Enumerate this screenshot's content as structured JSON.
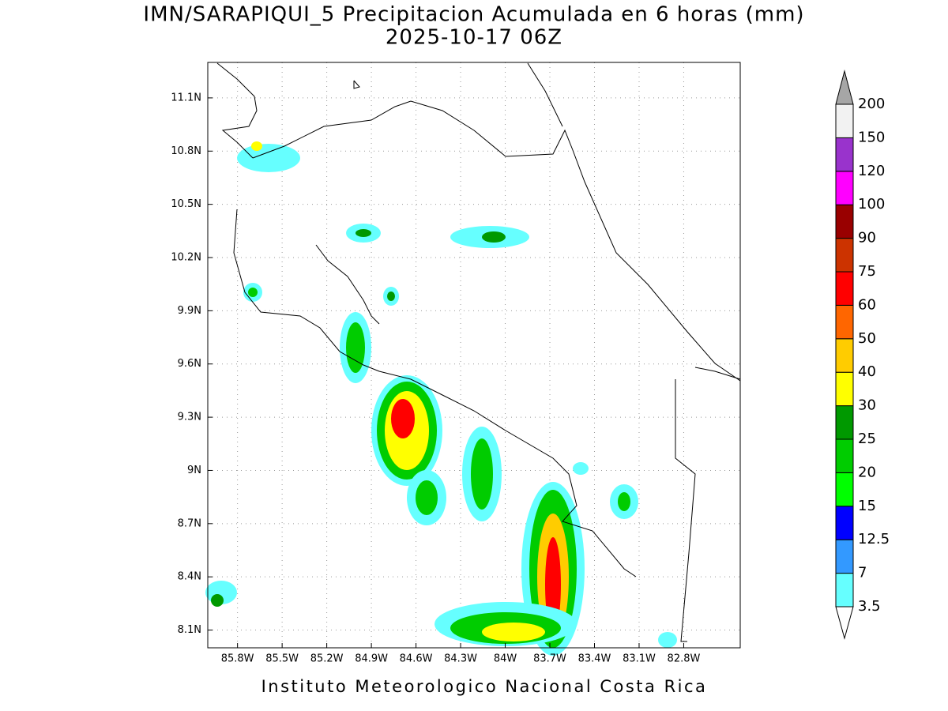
{
  "header": {
    "title": "IMN/SARAPIQUI_5 Precipitacion Acumulada en 6 horas (mm)",
    "subtitle": "2025-10-17 06Z"
  },
  "map": {
    "lon_range": [
      -86.0,
      -82.42
    ],
    "lat_range": [
      8.0,
      11.3
    ],
    "grid": true,
    "lon_ticks": [
      {
        "value": -85.8,
        "label": "85.8W"
      },
      {
        "value": -85.5,
        "label": "85.5W"
      },
      {
        "value": -85.2,
        "label": "85.2W"
      },
      {
        "value": -84.9,
        "label": "84.9W"
      },
      {
        "value": -84.6,
        "label": "84.6W"
      },
      {
        "value": -84.3,
        "label": "84.3W"
      },
      {
        "value": -84.0,
        "label": "84W"
      },
      {
        "value": -83.7,
        "label": "83.7W"
      },
      {
        "value": -83.4,
        "label": "83.4W"
      },
      {
        "value": -83.1,
        "label": "83.1W"
      },
      {
        "value": -82.8,
        "label": "82.8W"
      }
    ],
    "lat_ticks": [
      {
        "value": 8.1,
        "label": "8.1N"
      },
      {
        "value": 8.4,
        "label": "8.4N"
      },
      {
        "value": 8.7,
        "label": "8.7N"
      },
      {
        "value": 9.0,
        "label": "9N"
      },
      {
        "value": 9.3,
        "label": "9.3N"
      },
      {
        "value": 9.6,
        "label": "9.6N"
      },
      {
        "value": 9.9,
        "label": "9.9N"
      },
      {
        "value": 10.2,
        "label": "10.2N"
      },
      {
        "value": 10.5,
        "label": "10.5N"
      },
      {
        "value": 10.8,
        "label": "10.8N"
      },
      {
        "value": 11.1,
        "label": "11.1N"
      }
    ]
  },
  "colorbar": {
    "levels": [
      3.5,
      7,
      12.5,
      15,
      20,
      25,
      30,
      40,
      50,
      60,
      75,
      90,
      100,
      120,
      150,
      200
    ],
    "colors": [
      "#66ffff",
      "#3399ff",
      "#0000ff",
      "#00ff00",
      "#00cc00",
      "#009900",
      "#ffff00",
      "#ffcc00",
      "#ff6600",
      "#ff0000",
      "#cc3300",
      "#990000",
      "#ff00ff",
      "#9933cc",
      "#f2f2f2"
    ],
    "under_color": "#ffffff",
    "over_color": "#a6a6a6"
  },
  "footer": "Instituto Meteorologico Nacional Costa Rica"
}
